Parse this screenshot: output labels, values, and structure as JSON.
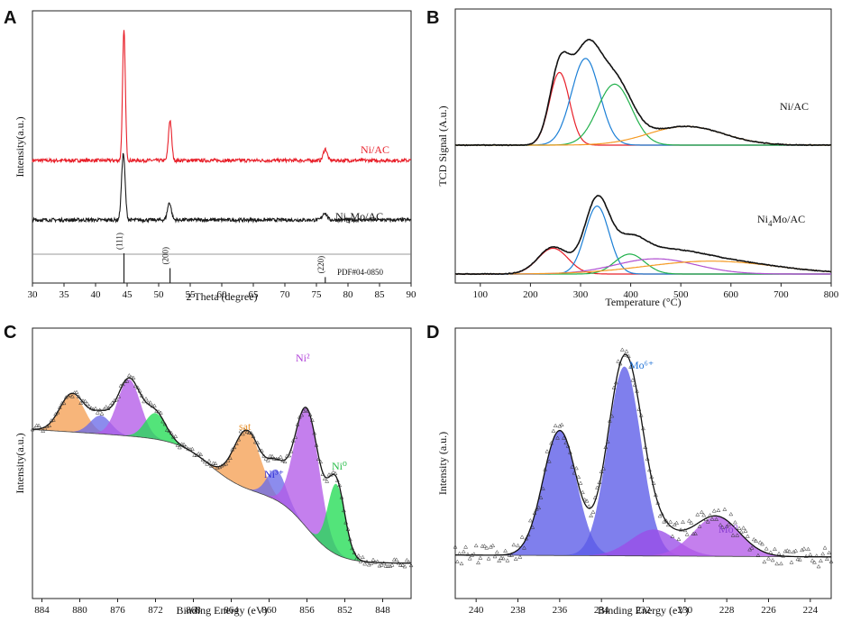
{
  "figure": {
    "panels": [
      "A",
      "B",
      "C",
      "D"
    ]
  },
  "chart_data": [
    {
      "panel": "A",
      "type": "line",
      "title": "",
      "xlabel": "2 Theta (degree)",
      "ylabel": "Intensity(a.u.)",
      "xlim": [
        30,
        90
      ],
      "xticks": [
        30,
        35,
        40,
        45,
        50,
        55,
        60,
        65,
        70,
        75,
        80,
        85,
        90
      ],
      "series": [
        {
          "name": "Ni/AC",
          "color": "#e8202a",
          "baseline": 0.0,
          "noise": 0.012,
          "peaks": [
            [
              44.5,
              0.9,
              0.22
            ],
            [
              51.8,
              0.28,
              0.25
            ],
            [
              76.4,
              0.08,
              0.3
            ]
          ]
        },
        {
          "name": "Ni4Mo/AC",
          "label_main": "Ni",
          "label_sub": "4",
          "label_tail": "Mo/AC",
          "color": "#1a1a1a",
          "baseline": 0.0,
          "noise": 0.012,
          "peaks": [
            [
              44.4,
              0.46,
              0.28
            ],
            [
              51.7,
              0.12,
              0.3
            ],
            [
              76.3,
              0.05,
              0.35
            ]
          ]
        }
      ],
      "reference": {
        "name": "PDF#04-0850",
        "lines": [
          {
            "x": 44.5,
            "label": "(111)",
            "height": 1.0
          },
          {
            "x": 51.8,
            "label": "(200)",
            "height": 0.5
          },
          {
            "x": 76.4,
            "label": "(220)",
            "height": 0.2
          }
        ]
      }
    },
    {
      "panel": "B",
      "type": "line",
      "title": "",
      "xlabel": "Temperature (°C)",
      "ylabel": "TCD Signal (A.u.)",
      "xlim": [
        50,
        800
      ],
      "xticks": [
        100,
        200,
        300,
        400,
        500,
        600,
        700,
        800
      ],
      "samples": [
        {
          "name": "Ni/AC",
          "components": [
            {
              "color": "#e8202a",
              "center": 258,
              "amp": 0.62,
              "width": 20
            },
            {
              "color": "#1b7fd6",
              "center": 310,
              "amp": 0.74,
              "width": 28
            },
            {
              "color": "#22b14c",
              "center": 368,
              "amp": 0.52,
              "width": 34
            },
            {
              "color": "#f59a23",
              "center": 510,
              "amp": 0.16,
              "width": 75
            }
          ]
        },
        {
          "name": "Ni4Mo/AC",
          "label_main": "Ni",
          "label_sub": "4",
          "label_tail": "Mo/AC",
          "components": [
            {
              "color": "#e8202a",
              "center": 245,
              "amp": 0.22,
              "width": 30
            },
            {
              "color": "#1b7fd6",
              "center": 333,
              "amp": 0.58,
              "width": 24
            },
            {
              "color": "#22b14c",
              "center": 398,
              "amp": 0.17,
              "width": 30
            },
            {
              "color": "#b04fd1",
              "center": 450,
              "amp": 0.13,
              "width": 80
            },
            {
              "color": "#f59a23",
              "center": 560,
              "amp": 0.11,
              "width": 130
            }
          ]
        }
      ]
    },
    {
      "panel": "C",
      "type": "area",
      "title": "",
      "xlabel": "Binding Energy (eV)",
      "ylabel": "Intensity(a.u.)",
      "xlim": [
        885,
        845
      ],
      "xticks": [
        884,
        880,
        876,
        872,
        868,
        864,
        860,
        856,
        852,
        848
      ],
      "components": [
        {
          "name": "sat-1",
          "color": "#f5a055",
          "center": 880.8,
          "amp": 0.25,
          "width": 1.3
        },
        {
          "name": "Ni3+-2",
          "color": "#6b6be8",
          "center": 877.8,
          "amp": 0.12,
          "width": 1.1
        },
        {
          "name": "Ni2+-2",
          "color": "#b45be8",
          "center": 874.8,
          "amp": 0.37,
          "width": 1.2
        },
        {
          "name": "Ni0-2",
          "color": "#22dd55",
          "center": 872.0,
          "amp": 0.17,
          "width": 1.1
        },
        {
          "name": "sat-2",
          "color": "#f5a055",
          "center": 862.3,
          "amp": 0.38,
          "width": 1.4
        },
        {
          "name": "Ni3+-1",
          "color": "#6b6be8",
          "center": 859.2,
          "amp": 0.2,
          "width": 1.0
        },
        {
          "name": "Ni2+-1",
          "color": "#b45be8",
          "center": 856.0,
          "amp": 0.78,
          "width": 1.3
        },
        {
          "name": "Ni0-1",
          "color": "#22dd55",
          "center": 852.9,
          "amp": 0.46,
          "width": 0.9
        }
      ],
      "annotations": [
        {
          "label": "sat",
          "x": 862.3,
          "color": "#e8902a"
        },
        {
          "label": "Ni³⁺",
          "x": 858.3,
          "color": "#2b2bd6"
        },
        {
          "label": "Ni²",
          "x": 856.0,
          "color": "#b040d8"
        },
        {
          "label": "Ni⁰",
          "x": 852.2,
          "color": "#22bb44"
        }
      ]
    },
    {
      "panel": "D",
      "type": "area",
      "title": "",
      "xlabel": "Binding Energy (eV)",
      "ylabel": "Intensity (a.u.)",
      "xlim": [
        241,
        223
      ],
      "xticks": [
        240,
        238,
        236,
        234,
        232,
        230,
        228,
        226,
        224
      ],
      "components": [
        {
          "name": "Mo6+ 3d3/2",
          "color": "#5b5be8",
          "center": 236.0,
          "amp": 0.66,
          "width": 0.8
        },
        {
          "name": "Mo6+ 3d5/2",
          "color": "#5b5be8",
          "center": 232.9,
          "amp": 1.0,
          "width": 0.8
        },
        {
          "name": "Mo0 3d3/2",
          "color": "#9a4de8",
          "center": 231.5,
          "amp": 0.14,
          "width": 1.1
        },
        {
          "name": "Mo0 3d5/2",
          "color": "#b45be8",
          "center": 228.5,
          "amp": 0.21,
          "width": 1.1
        }
      ],
      "annotations": [
        {
          "label": "Mo⁶⁺",
          "x": 232.4,
          "color": "#1b6fd6"
        },
        {
          "label": "Mo⁰",
          "x": 227.8,
          "color": "#8a3fd0"
        }
      ]
    }
  ]
}
